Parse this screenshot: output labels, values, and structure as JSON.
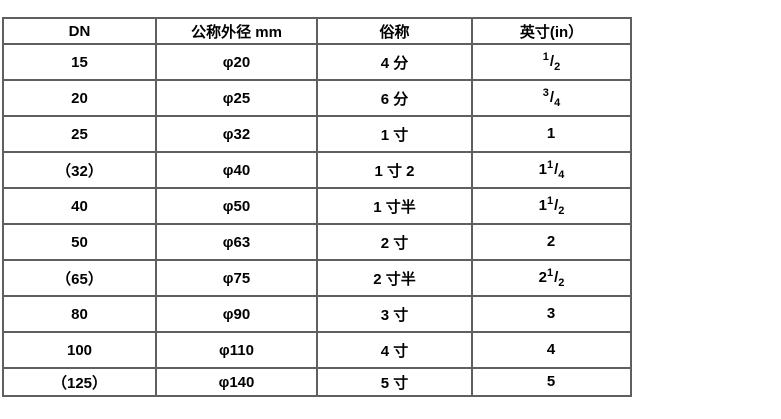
{
  "table": {
    "border_color": "#5f5f5f",
    "text_color": "#000000",
    "headers": {
      "dn": "DN",
      "od": "公称外径 mm",
      "common": "俗称",
      "inch": "英寸(in）"
    },
    "rows": [
      {
        "dn": "15",
        "od": "φ20",
        "common": "4 分",
        "inch": {
          "whole": "",
          "sup": "1",
          "slash": "/",
          "sub": "2"
        }
      },
      {
        "dn": "20",
        "od": "φ25",
        "common": "6 分",
        "inch": {
          "whole": "",
          "sup": "3",
          "slash": "/",
          "sub": "4"
        }
      },
      {
        "dn": "25",
        "od": "φ32",
        "common": "1 寸",
        "inch": {
          "whole": "1",
          "sup": "",
          "slash": "",
          "sub": ""
        }
      },
      {
        "dn": "（32）",
        "od": "φ40",
        "common": "1 寸 2",
        "inch": {
          "whole": "1",
          "sup": "1",
          "slash": "/",
          "sub": "4"
        }
      },
      {
        "dn": "40",
        "od": "φ50",
        "common": "1 寸半",
        "inch": {
          "whole": "1",
          "sup": "1",
          "slash": "/",
          "sub": "2"
        }
      },
      {
        "dn": "50",
        "od": "φ63",
        "common": "2 寸",
        "inch": {
          "whole": "2",
          "sup": "",
          "slash": "",
          "sub": ""
        }
      },
      {
        "dn": "（65）",
        "od": "φ75",
        "common": "2 寸半",
        "inch": {
          "whole": "2",
          "sup": "1",
          "slash": "/",
          "sub": "2"
        }
      },
      {
        "dn": "80",
        "od": "φ90",
        "common": "3 寸",
        "inch": {
          "whole": "3",
          "sup": "",
          "slash": "",
          "sub": ""
        }
      },
      {
        "dn": "100",
        "od": "φ110",
        "common": "4 寸",
        "inch": {
          "whole": "4",
          "sup": "",
          "slash": "",
          "sub": ""
        }
      },
      {
        "dn": "（125）",
        "od": "φ140",
        "common": "5 寸",
        "inch": {
          "whole": "5",
          "sup": "",
          "slash": "",
          "sub": ""
        }
      }
    ]
  }
}
